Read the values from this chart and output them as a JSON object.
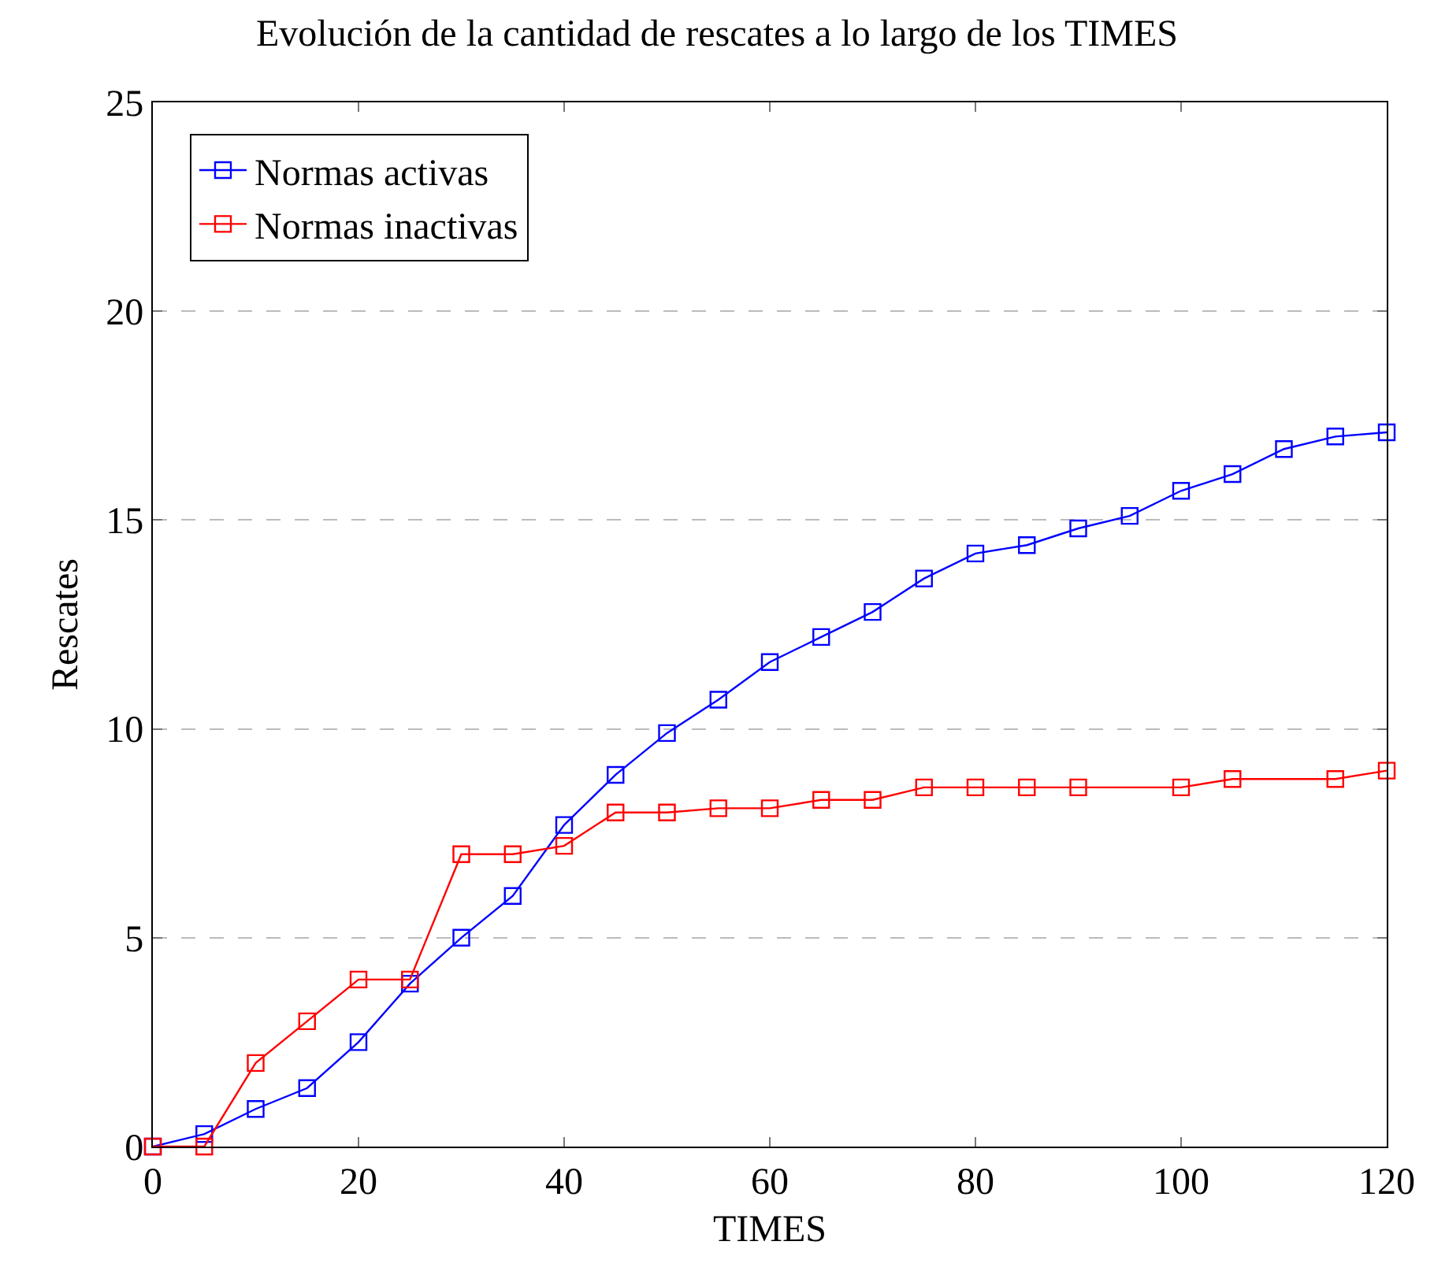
{
  "chart_data": {
    "type": "line",
    "title": "Evolución de la cantidad de rescates a lo largo de los TIMES",
    "xlabel": "TIMES",
    "ylabel": "Rescates",
    "xlim": [
      0,
      120
    ],
    "xticks": [
      0,
      20,
      40,
      60,
      80,
      100,
      120
    ],
    "ylim": [
      0,
      25
    ],
    "yticks": [
      0,
      5,
      10,
      15,
      20,
      25
    ],
    "grid": "y",
    "legend": "top left",
    "marker": "square",
    "line_style": "solid",
    "series": [
      {
        "name": "Normas activas",
        "color": "#0000ff",
        "x": [
          0,
          5,
          10,
          15,
          20,
          25,
          30,
          35,
          40,
          45,
          50,
          55,
          60,
          65,
          70,
          75,
          80,
          85,
          90,
          95,
          100,
          105,
          110,
          115,
          120
        ],
        "values": [
          0,
          0.3,
          0.9,
          1.4,
          2.5,
          3.9,
          5,
          6,
          7.7,
          8.9,
          9.9,
          10.7,
          11.6,
          12.2,
          12.8,
          13.6,
          14.2,
          14.4,
          14.8,
          15.1,
          15.7,
          16.1,
          16.7,
          17.0,
          17.1
        ]
      },
      {
        "name": "Normas inactivas",
        "color": "#ff0000",
        "x": [
          0,
          5,
          10,
          15,
          20,
          25,
          30,
          35,
          40,
          45,
          50,
          55,
          60,
          65,
          70,
          75,
          80,
          85,
          90,
          100,
          105,
          115,
          120
        ],
        "values": [
          0,
          0,
          2,
          3,
          4,
          4,
          7,
          7,
          7.2,
          8,
          8,
          8.1,
          8.1,
          8.3,
          8.3,
          8.6,
          8.6,
          8.6,
          8.6,
          8.6,
          8.8,
          8.8,
          9.0
        ]
      }
    ]
  }
}
